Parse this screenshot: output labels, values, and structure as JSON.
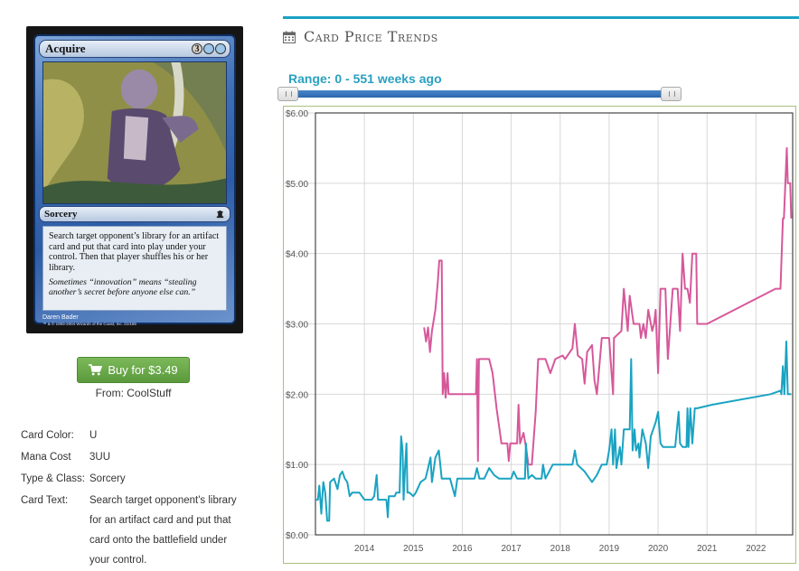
{
  "card": {
    "name": "Acquire",
    "mana_symbols": [
      "3",
      "",
      ""
    ],
    "type_line": "Sorcery",
    "rules_text": "Search target opponent’s library for an artifact card and put that card into play under your control. Then that player shuffles his or her library.",
    "flavor_text": "Sometimes “innovation” means “stealing another’s secret before anyone else can.”",
    "artist": "Daren Bader",
    "copyright": "™ & © 1993-2004 Wizards of the Coast, Inc. 21/165"
  },
  "buy": {
    "label": "Buy for $3.49",
    "from": "From: CoolStuff"
  },
  "details": [
    {
      "label": "Card Color:",
      "value": "U"
    },
    {
      "label": "Mana Cost",
      "value": "3UU"
    },
    {
      "label": "Type & Class:",
      "value": "Sorcery"
    },
    {
      "label": "Card Text:",
      "value": "Search target opponent's library for an artifact card and put that card onto the battlefield under your control."
    }
  ],
  "trends": {
    "title": "Card Price Trends",
    "range_label": "Range: 0 - 551 weeks ago",
    "slider": {
      "min": 0,
      "max": 551,
      "low": 0,
      "high": 551
    }
  },
  "colors": {
    "accent": "#1ba1c4",
    "buy_green": "#5b9a3c",
    "series_pink": "#d6589a",
    "series_teal": "#1aa3c2"
  },
  "chart_data": {
    "type": "line",
    "title": "",
    "xlabel": "",
    "ylabel": "",
    "grid": true,
    "xlim": [
      2013.0,
      2022.75
    ],
    "ylim": [
      0,
      6
    ],
    "x_ticks": [
      "2014",
      "2015",
      "2016",
      "2017",
      "2018",
      "2019",
      "2020",
      "2021",
      "2022"
    ],
    "y_ticks": [
      "$0.00",
      "$1.00",
      "$2.00",
      "$3.00",
      "$4.00",
      "$5.00",
      "$6.00"
    ],
    "series": [
      {
        "color": "#d6589a",
        "points": [
          [
            2015.22,
            2.95
          ],
          [
            2015.26,
            2.75
          ],
          [
            2015.3,
            2.95
          ],
          [
            2015.34,
            2.6
          ],
          [
            2015.38,
            2.9
          ],
          [
            2015.45,
            3.2
          ],
          [
            2015.5,
            3.6
          ],
          [
            2015.53,
            3.9
          ],
          [
            2015.58,
            3.9
          ],
          [
            2015.6,
            2.0
          ],
          [
            2015.63,
            2.3
          ],
          [
            2015.66,
            1.95
          ],
          [
            2015.7,
            2.3
          ],
          [
            2015.72,
            2.0
          ],
          [
            2016.28,
            2.0
          ],
          [
            2016.3,
            2.5
          ],
          [
            2016.32,
            1.05
          ],
          [
            2016.34,
            2.5
          ],
          [
            2016.55,
            2.5
          ],
          [
            2016.62,
            2.3
          ],
          [
            2016.7,
            1.8
          ],
          [
            2016.8,
            1.3
          ],
          [
            2016.92,
            1.3
          ],
          [
            2016.95,
            1.05
          ],
          [
            2016.98,
            1.3
          ],
          [
            2017.12,
            1.3
          ],
          [
            2017.15,
            1.85
          ],
          [
            2017.18,
            1.3
          ],
          [
            2017.25,
            1.45
          ],
          [
            2017.3,
            1.25
          ],
          [
            2017.35,
            1.0
          ],
          [
            2017.42,
            1.0
          ],
          [
            2017.5,
            1.75
          ],
          [
            2017.55,
            2.5
          ],
          [
            2017.7,
            2.5
          ],
          [
            2017.8,
            2.3
          ],
          [
            2017.9,
            2.5
          ],
          [
            2018.05,
            2.55
          ],
          [
            2018.1,
            2.5
          ],
          [
            2018.25,
            2.65
          ],
          [
            2018.3,
            3.0
          ],
          [
            2018.36,
            2.55
          ],
          [
            2018.45,
            2.5
          ],
          [
            2018.5,
            2.15
          ],
          [
            2018.55,
            2.6
          ],
          [
            2018.65,
            2.7
          ],
          [
            2018.7,
            2.2
          ],
          [
            2018.75,
            2.0
          ],
          [
            2018.85,
            2.8
          ],
          [
            2019.0,
            2.8
          ],
          [
            2019.08,
            2.0
          ],
          [
            2019.1,
            2.8
          ],
          [
            2019.25,
            2.9
          ],
          [
            2019.3,
            3.5
          ],
          [
            2019.38,
            2.9
          ],
          [
            2019.42,
            3.4
          ],
          [
            2019.5,
            3.0
          ],
          [
            2019.62,
            3.0
          ],
          [
            2019.65,
            2.8
          ],
          [
            2019.7,
            3.0
          ],
          [
            2019.75,
            2.8
          ],
          [
            2019.8,
            3.2
          ],
          [
            2019.88,
            2.9
          ],
          [
            2019.92,
            3.0
          ],
          [
            2019.95,
            3.2
          ],
          [
            2020.0,
            2.3
          ],
          [
            2020.05,
            3.5
          ],
          [
            2020.15,
            3.5
          ],
          [
            2020.2,
            2.5
          ],
          [
            2020.3,
            3.5
          ],
          [
            2020.4,
            3.5
          ],
          [
            2020.45,
            2.9
          ],
          [
            2020.5,
            4.0
          ],
          [
            2020.55,
            3.5
          ],
          [
            2020.6,
            3.5
          ],
          [
            2020.65,
            3.3
          ],
          [
            2020.7,
            4.0
          ],
          [
            2020.78,
            4.0
          ],
          [
            2020.8,
            3.0
          ],
          [
            2021.0,
            3.0
          ],
          [
            2022.4,
            3.5
          ],
          [
            2022.5,
            3.5
          ],
          [
            2022.55,
            4.5
          ],
          [
            2022.57,
            4.5
          ],
          [
            2022.6,
            5.0
          ],
          [
            2022.63,
            5.5
          ],
          [
            2022.65,
            5.0
          ],
          [
            2022.7,
            5.0
          ],
          [
            2022.72,
            4.5
          ]
        ]
      },
      {
        "color": "#1aa3c2",
        "points": [
          [
            2013.0,
            0.5
          ],
          [
            2013.05,
            0.5
          ],
          [
            2013.08,
            0.7
          ],
          [
            2013.12,
            0.3
          ],
          [
            2013.16,
            0.75
          ],
          [
            2013.2,
            0.6
          ],
          [
            2013.24,
            0.2
          ],
          [
            2013.28,
            0.2
          ],
          [
            2013.3,
            0.75
          ],
          [
            2013.38,
            0.8
          ],
          [
            2013.45,
            0.65
          ],
          [
            2013.5,
            0.85
          ],
          [
            2013.55,
            0.9
          ],
          [
            2013.6,
            0.8
          ],
          [
            2013.65,
            0.75
          ],
          [
            2013.7,
            0.55
          ],
          [
            2013.75,
            0.6
          ],
          [
            2013.9,
            0.6
          ],
          [
            2014.0,
            0.5
          ],
          [
            2014.15,
            0.5
          ],
          [
            2014.2,
            0.55
          ],
          [
            2014.25,
            0.85
          ],
          [
            2014.28,
            0.5
          ],
          [
            2014.45,
            0.5
          ],
          [
            2014.48,
            0.25
          ],
          [
            2014.5,
            0.55
          ],
          [
            2014.62,
            0.55
          ],
          [
            2014.65,
            0.6
          ],
          [
            2014.72,
            0.6
          ],
          [
            2014.75,
            1.4
          ],
          [
            2014.78,
            1.2
          ],
          [
            2014.8,
            0.5
          ],
          [
            2014.83,
            0.95
          ],
          [
            2014.86,
            1.3
          ],
          [
            2014.88,
            0.6
          ],
          [
            2014.92,
            0.6
          ],
          [
            2015.0,
            0.55
          ],
          [
            2015.05,
            0.6
          ],
          [
            2015.15,
            0.75
          ],
          [
            2015.25,
            0.8
          ],
          [
            2015.3,
            0.95
          ],
          [
            2015.35,
            1.1
          ],
          [
            2015.38,
            0.75
          ],
          [
            2015.45,
            1.1
          ],
          [
            2015.52,
            1.2
          ],
          [
            2015.58,
            0.8
          ],
          [
            2015.75,
            0.8
          ],
          [
            2015.85,
            0.55
          ],
          [
            2015.9,
            0.8
          ],
          [
            2016.25,
            0.8
          ],
          [
            2016.3,
            0.95
          ],
          [
            2016.35,
            0.8
          ],
          [
            2016.45,
            0.8
          ],
          [
            2016.55,
            0.95
          ],
          [
            2016.65,
            0.85
          ],
          [
            2016.75,
            0.8
          ],
          [
            2017.0,
            0.8
          ],
          [
            2017.05,
            0.9
          ],
          [
            2017.12,
            0.8
          ],
          [
            2017.28,
            0.8
          ],
          [
            2017.3,
            1.3
          ],
          [
            2017.35,
            0.8
          ],
          [
            2017.42,
            0.85
          ],
          [
            2017.5,
            0.8
          ],
          [
            2017.62,
            0.8
          ],
          [
            2017.65,
            1.0
          ],
          [
            2017.7,
            0.8
          ],
          [
            2017.85,
            1.0
          ],
          [
            2018.25,
            1.0
          ],
          [
            2018.3,
            1.2
          ],
          [
            2018.35,
            1.0
          ],
          [
            2018.5,
            0.9
          ],
          [
            2018.65,
            0.75
          ],
          [
            2018.75,
            0.85
          ],
          [
            2018.85,
            1.0
          ],
          [
            2018.95,
            1.0
          ],
          [
            2019.0,
            1.2
          ],
          [
            2019.05,
            1.5
          ],
          [
            2019.08,
            1.0
          ],
          [
            2019.12,
            1.5
          ],
          [
            2019.15,
            0.95
          ],
          [
            2019.22,
            1.25
          ],
          [
            2019.25,
            1.0
          ],
          [
            2019.3,
            1.5
          ],
          [
            2019.42,
            1.5
          ],
          [
            2019.45,
            2.5
          ],
          [
            2019.48,
            1.2
          ],
          [
            2019.52,
            1.5
          ],
          [
            2019.55,
            1.2
          ],
          [
            2019.6,
            1.3
          ],
          [
            2019.62,
            1.1
          ],
          [
            2019.68,
            1.5
          ],
          [
            2019.75,
            1.3
          ],
          [
            2019.8,
            0.95
          ],
          [
            2019.85,
            1.4
          ],
          [
            2019.95,
            1.6
          ],
          [
            2020.0,
            1.75
          ],
          [
            2020.05,
            1.3
          ],
          [
            2020.1,
            1.25
          ],
          [
            2020.25,
            1.25
          ],
          [
            2020.35,
            1.25
          ],
          [
            2020.42,
            1.75
          ],
          [
            2020.45,
            1.3
          ],
          [
            2020.5,
            1.25
          ],
          [
            2020.58,
            1.25
          ],
          [
            2020.6,
            1.8
          ],
          [
            2020.62,
            1.25
          ],
          [
            2020.66,
            1.8
          ],
          [
            2020.7,
            1.3
          ],
          [
            2020.75,
            1.8
          ],
          [
            2020.8,
            1.8
          ],
          [
            2021.1,
            1.85
          ],
          [
            2022.3,
            2.0
          ],
          [
            2022.5,
            2.05
          ],
          [
            2022.52,
            2.0
          ],
          [
            2022.55,
            2.4
          ],
          [
            2022.58,
            2.0
          ],
          [
            2022.62,
            2.75
          ],
          [
            2022.65,
            2.0
          ],
          [
            2022.72,
            2.0
          ]
        ]
      }
    ]
  }
}
